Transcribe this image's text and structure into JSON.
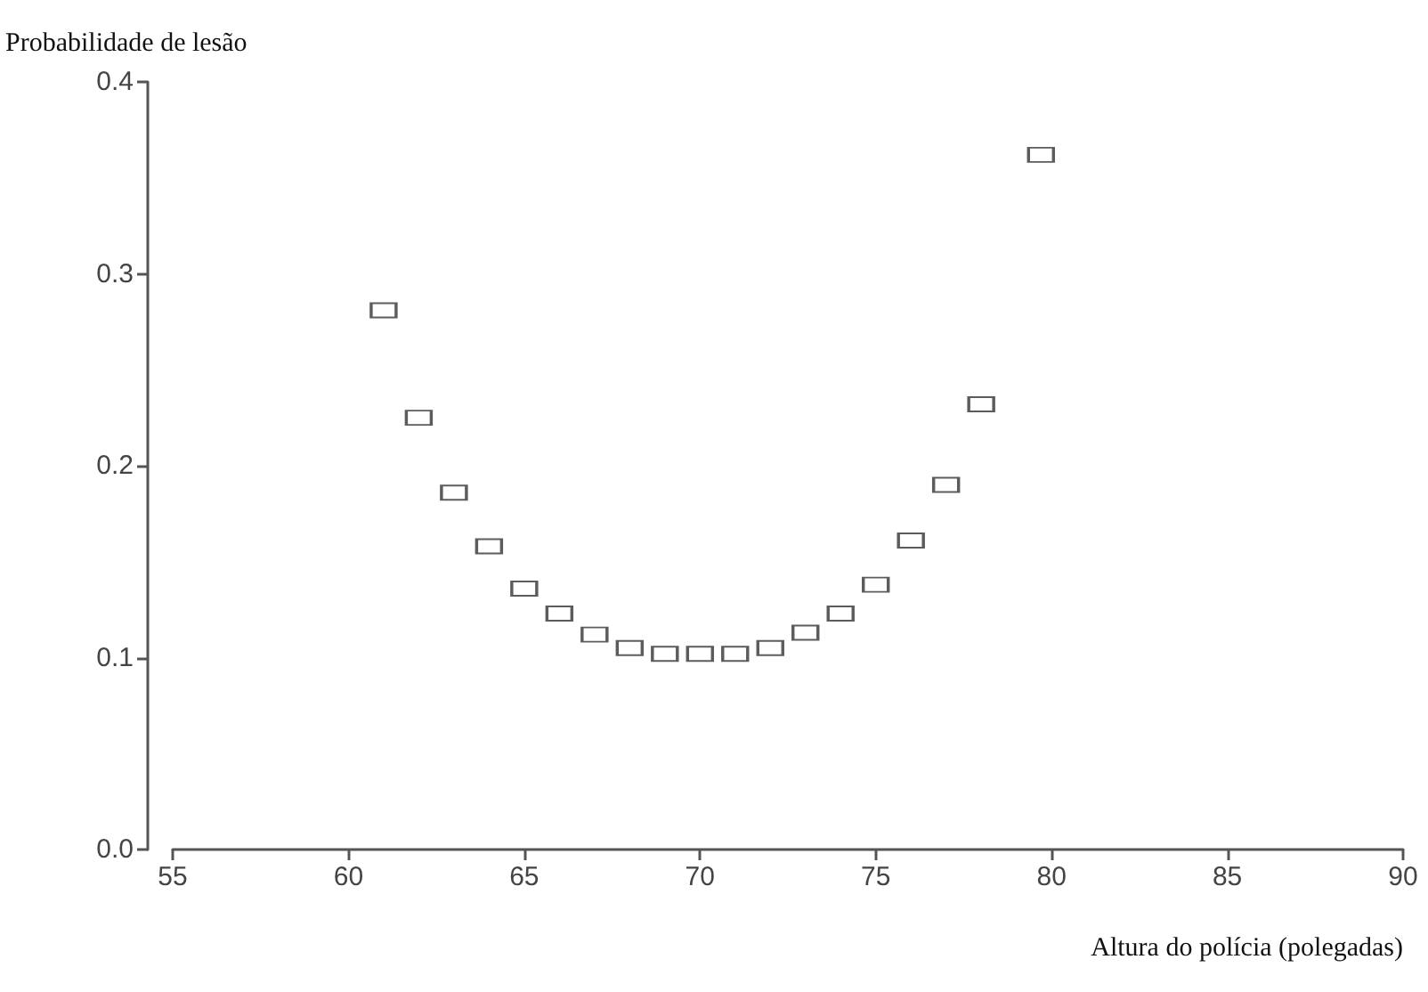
{
  "chart_data": {
    "type": "scatter",
    "xlabel": "Altura do polícia (polegadas)",
    "ylabel": "Probabilidade de lesão",
    "x": [
      61,
      62,
      63,
      64,
      65,
      66,
      67,
      68,
      69,
      70,
      71,
      72,
      73,
      74,
      75,
      76,
      77,
      78,
      79.7
    ],
    "values": [
      0.281,
      0.225,
      0.186,
      0.158,
      0.136,
      0.123,
      0.112,
      0.105,
      0.102,
      0.102,
      0.102,
      0.105,
      0.113,
      0.123,
      0.138,
      0.161,
      0.19,
      0.232,
      0.362
    ],
    "color": "#333333",
    "marker": "square",
    "xlim": [
      55,
      90
    ],
    "xticks": [
      55,
      60,
      65,
      70,
      75,
      80,
      85,
      90
    ],
    "ylim": [
      0,
      0.4
    ],
    "yticks": [
      {
        "value": 0,
        "label": "0.0"
      },
      0.1,
      0.2,
      0.3,
      0.4
    ],
    "grid": false
  }
}
